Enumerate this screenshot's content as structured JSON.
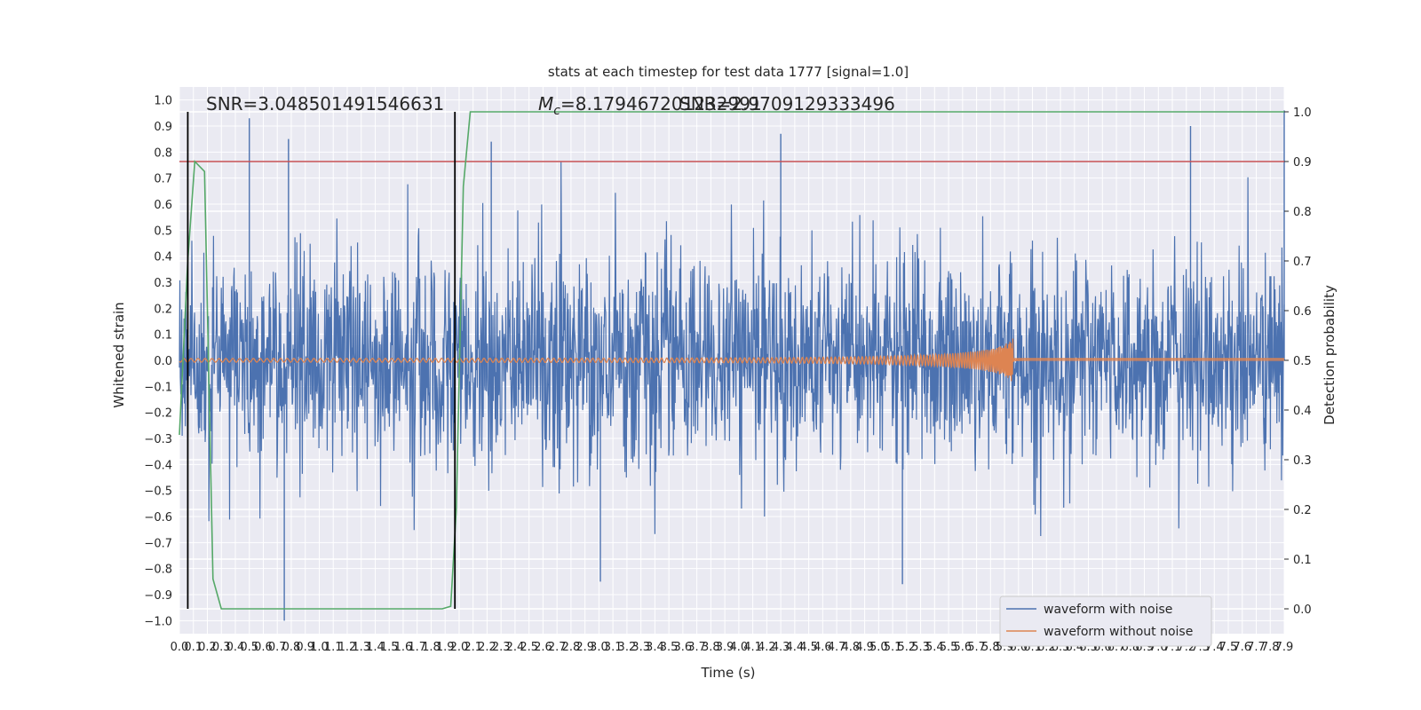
{
  "chart_data": {
    "type": "line",
    "title": "stats at each timestep for test data 1777 [signal=1.0]",
    "xlabel": "Time (s)",
    "ylabel_left": "Whitened strain",
    "ylabel_right": "Detection probability",
    "xlim": [
      0.0,
      7.9
    ],
    "ylim_left": [
      -1.05,
      1.05
    ],
    "ylim_right": [
      -0.05,
      1.05
    ],
    "grid": true,
    "legend_placement": "lower-right",
    "x_tick_labels": [
      "0.0",
      "0.1",
      "0.2",
      "0.3",
      "0.4",
      "0.5",
      "0.6",
      "0.7",
      "0.8",
      "0.9",
      "1.0",
      "1.1",
      "1.2",
      "1.3",
      "1.4",
      "1.5",
      "1.6",
      "1.7",
      "1.8",
      "1.9",
      "2.0",
      "2.1",
      "2.2",
      "2.3",
      "2.4",
      "2.5",
      "2.6",
      "2.7",
      "2.8",
      "2.9",
      "3.0",
      "3.1",
      "3.2",
      "3.3",
      "3.4",
      "3.5",
      "3.6",
      "3.7",
      "3.8",
      "3.9",
      "4.0",
      "4.1",
      "4.2",
      "4.3",
      "4.4",
      "4.5",
      "4.6",
      "4.7",
      "4.8",
      "4.9",
      "5.0",
      "5.1",
      "5.2",
      "5.3",
      "5.4",
      "5.5",
      "5.6",
      "5.7",
      "5.8",
      "5.9",
      "6.0",
      "6.1",
      "6.2",
      "6.3",
      "6.4",
      "6.5",
      "6.6",
      "6.7",
      "6.8",
      "6.9",
      "7.0",
      "7.1",
      "7.2",
      "7.3",
      "7.4",
      "7.5",
      "7.6",
      "7.7",
      "7.8",
      "7.9"
    ],
    "y_left_tick_labels": [
      "1.0",
      "0.9",
      "0.8",
      "0.7",
      "0.6",
      "0.5",
      "0.4",
      "0.3",
      "0.2",
      "0.1",
      "0.0",
      "−0.1",
      "−0.2",
      "−0.3",
      "−0.4",
      "−0.5",
      "−0.6",
      "−0.7",
      "−0.8",
      "−0.9",
      "−1.0"
    ],
    "y_left_tick_values": [
      1.0,
      0.9,
      0.8,
      0.7,
      0.6,
      0.5,
      0.4,
      0.3,
      0.2,
      0.1,
      0.0,
      -0.1,
      -0.2,
      -0.3,
      -0.4,
      -0.5,
      -0.6,
      -0.7,
      -0.8,
      -0.9,
      -1.0
    ],
    "y_right_tick_labels": [
      "1.0",
      "0.9",
      "0.8",
      "0.7",
      "0.6",
      "0.5",
      "0.4",
      "0.3",
      "0.2",
      "0.1",
      "0.0"
    ],
    "y_right_tick_values": [
      1.0,
      0.9,
      0.8,
      0.7,
      0.6,
      0.5,
      0.4,
      0.3,
      0.2,
      0.1,
      0.0
    ],
    "series": [
      {
        "name": "waveform with noise",
        "color": "#4c72b0",
        "axis": "left",
        "kind": "noise",
        "envelope_typical": [
          -0.45,
          0.45
        ],
        "peaks": [
          {
            "x": 0.5,
            "y": 0.93
          },
          {
            "x": 0.78,
            "y": 0.85
          },
          {
            "x": 0.75,
            "y": -1.0
          },
          {
            "x": 2.23,
            "y": 0.84
          },
          {
            "x": 4.3,
            "y": 0.87
          },
          {
            "x": 5.17,
            "y": -0.86
          },
          {
            "x": 7.23,
            "y": 0.9
          },
          {
            "x": 7.9,
            "y": 0.96
          },
          {
            "x": 3.01,
            "y": -0.85
          }
        ]
      },
      {
        "name": "waveform without noise",
        "color": "#dd8452",
        "axis": "left",
        "kind": "chirp",
        "start": 0.0,
        "merger": 5.96,
        "amplitude_start": 0.007,
        "amplitude_peak": 0.11
      },
      {
        "color": "#55a868",
        "axis": "right",
        "x": [
          0.0,
          0.06,
          0.11,
          0.18,
          0.24,
          0.3,
          0.8,
          1.5,
          1.88,
          1.94,
          1.98,
          2.03,
          2.08,
          2.5,
          7.9
        ],
        "y": [
          0.35,
          0.7,
          0.9,
          0.88,
          0.06,
          0.0,
          0.0,
          0.0,
          0.0,
          0.005,
          0.2,
          0.85,
          1.0,
          1.0,
          1.0
        ]
      }
    ],
    "threshold": {
      "axis": "right",
      "y": 0.9,
      "color": "#c44e52"
    },
    "vlines": [
      {
        "x": 0.06,
        "color": "#000000"
      },
      {
        "x": 1.97,
        "color": "#000000"
      }
    ],
    "annotations": {
      "snr": "SNR=3.048501491546631",
      "mc_prefix": "M",
      "mc_sub": "c",
      "mc_value": "=8.179467201232991",
      "overlap": "SNR=2.9709129333496"
    }
  }
}
